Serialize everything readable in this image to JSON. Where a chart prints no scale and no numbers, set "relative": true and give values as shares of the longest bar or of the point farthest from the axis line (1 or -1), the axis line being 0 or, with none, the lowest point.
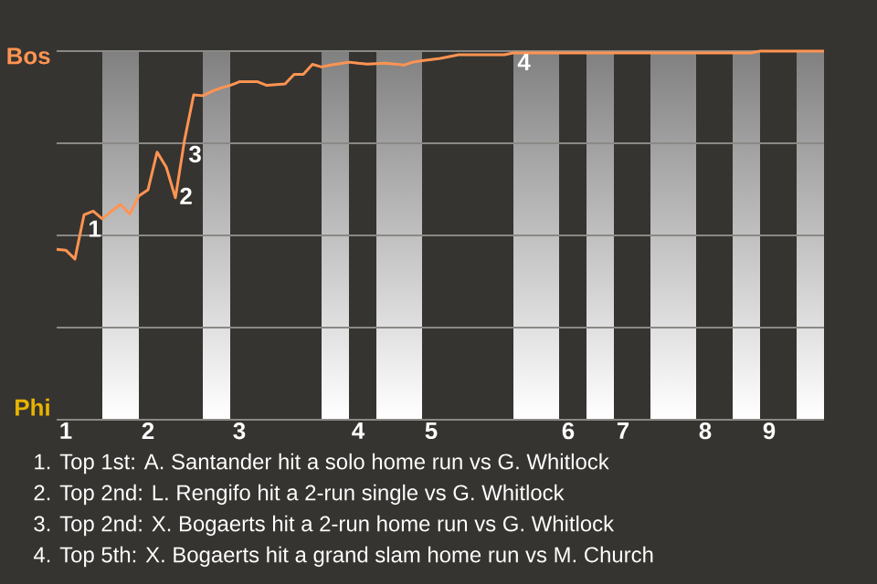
{
  "chart_data": {
    "type": "line",
    "color": "#ff9452",
    "relative": true,
    "categories": [
      null,
      "1",
      null,
      null,
      null,
      null,
      null,
      null,
      null,
      null,
      "2",
      null,
      null,
      null,
      null,
      null,
      null,
      null,
      null,
      null,
      "3",
      null,
      null,
      null,
      null,
      null,
      null,
      null,
      null,
      null,
      null,
      null,
      null,
      "4",
      null,
      null,
      null,
      null,
      null,
      null,
      null,
      "5",
      null,
      null,
      null,
      null,
      null,
      null,
      null,
      null,
      null,
      null,
      null,
      null,
      null,
      null,
      "6",
      null,
      null,
      null,
      null,
      null,
      "7",
      null,
      null,
      null,
      null,
      null,
      null,
      null,
      null,
      "8",
      null,
      null,
      null,
      null,
      null,
      null,
      "9",
      null,
      null,
      null,
      null,
      null,
      null
    ],
    "values": [
      0.462,
      0.46,
      0.436,
      0.556,
      0.566,
      0.545,
      0.566,
      0.584,
      0.558,
      0.607,
      0.624,
      0.726,
      0.685,
      0.602,
      0.759,
      0.881,
      0.879,
      0.891,
      0.9,
      0.907,
      0.917,
      0.917,
      0.917,
      0.907,
      0.909,
      0.911,
      0.937,
      0.937,
      0.964,
      0.957,
      0.962,
      0.966,
      0.97,
      0.967,
      0.965,
      0.966,
      0.967,
      0.965,
      0.962,
      0.97,
      0.974,
      0.977,
      0.98,
      0.985,
      0.99,
      0.99,
      0.99,
      0.99,
      0.99,
      0.99,
      0.995,
      0.995,
      0.995,
      0.995,
      0.995,
      0.995,
      0.995,
      0.995,
      0.995,
      0.995,
      0.995,
      0.995,
      0.995,
      0.995,
      0.995,
      0.995,
      0.995,
      0.995,
      0.995,
      0.995,
      0.995,
      0.995,
      0.995,
      0.995,
      0.995,
      0.995,
      0.995,
      1,
      1,
      1,
      1,
      1,
      1,
      1,
      1
    ],
    "grid": "y",
    "marker": "none",
    "line_style": "solid",
    "annotations": [
      "Bos",
      "Phi",
      {
        "text": "1",
        "y": 0.556
      },
      {
        "text": "2",
        "y": 0.602
      },
      {
        "text": "3",
        "y": 0.759
      },
      {
        "text": "4",
        "y": 0.995
      },
      "1. Top 1st: A. Santander hit a solo home run vs G. Whitlock",
      "2. Top 2nd: L. Rengifo hit a 2-run single vs G. Whitlock",
      "3. Top 2nd: X. Bogaerts hit a 2-run home run vs G. Whitlock",
      "4. Top 5th: X. Bogaerts hit a grand slam home run vs M. Church"
    ]
  }
}
